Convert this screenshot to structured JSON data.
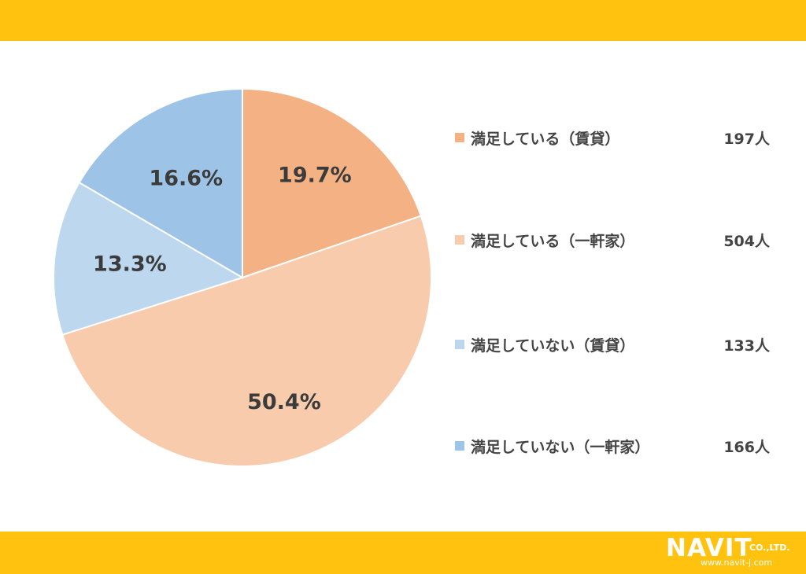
{
  "colors": {
    "bar": "#ffc20e",
    "slice_colors": [
      "#f4b183",
      "#f8cbad",
      "#bdd7ee",
      "#9dc3e6"
    ]
  },
  "chart_data": {
    "type": "pie",
    "categories": [
      "満足している（賃貸）",
      "満足している（一軒家）",
      "満足していない（賃貸）",
      "満足していない（一軒家）"
    ],
    "values": [
      19.7,
      50.4,
      13.3,
      16.6
    ],
    "value_labels": [
      "19.7%",
      "50.4%",
      "13.3%",
      "16.6%"
    ],
    "counts": [
      "197人",
      "504人",
      "133人",
      "166人"
    ],
    "legend_position": "right",
    "start_angle": "12 o'clock, clockwise"
  },
  "logo": {
    "main": "NAVIT",
    "company": "CO.,LTD.",
    "url": "www.navit-j.com"
  }
}
